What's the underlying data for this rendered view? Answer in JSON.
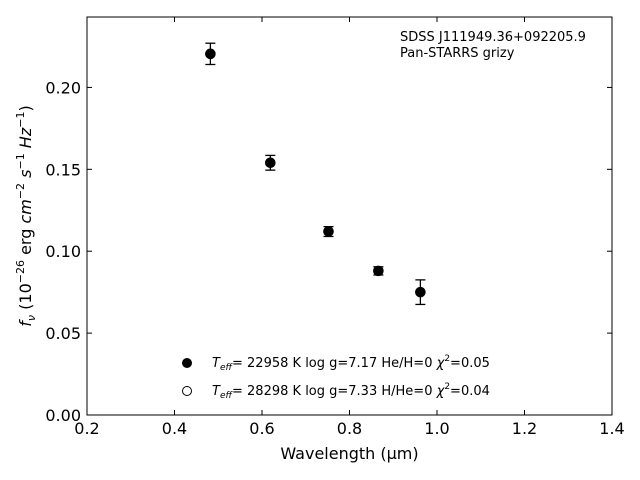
{
  "chart_data": {
    "type": "scatter",
    "title": "",
    "xlabel": "Wavelength (μm)",
    "ylabel": "f_ν (10^-26 erg cm^-2 s^-1 Hz^-1)",
    "xlim": [
      0.2,
      1.4
    ],
    "ylim": [
      0.0,
      0.243
    ],
    "xticks": [
      0.2,
      0.4,
      0.6,
      0.8,
      1.0,
      1.2,
      1.4
    ],
    "xtick_labels": [
      "0.2",
      "0.4",
      "0.6",
      "0.8",
      "1.0",
      "1.2",
      "1.4"
    ],
    "yticks": [
      0.0,
      0.05,
      0.1,
      0.15,
      0.2
    ],
    "ytick_labels": [
      "0.00",
      "0.05",
      "0.10",
      "0.15",
      "0.20"
    ],
    "grid": false,
    "annotation": {
      "object": "SDSS J111949.36+092205.9",
      "survey": "Pan-STARRS grizy"
    },
    "observed": {
      "x": [
        0.482,
        0.619,
        0.752,
        0.866,
        0.962
      ],
      "y": [
        0.2205,
        0.154,
        0.112,
        0.088,
        0.075
      ],
      "yerr": [
        0.0065,
        0.0045,
        0.003,
        0.0025,
        0.0075
      ]
    },
    "models": [
      {
        "marker": "filled-circle",
        "teff": "22958 K",
        "logg": "log g=7.17",
        "comp": "He/H=0",
        "chi2": "=0.05"
      },
      {
        "marker": "open-circle",
        "teff": "28298 K",
        "logg": "log g=7.33",
        "comp": "H/He=0",
        "chi2": "=0.04"
      }
    ],
    "colors": {
      "axes": "#000000",
      "markers": "#000000"
    }
  }
}
